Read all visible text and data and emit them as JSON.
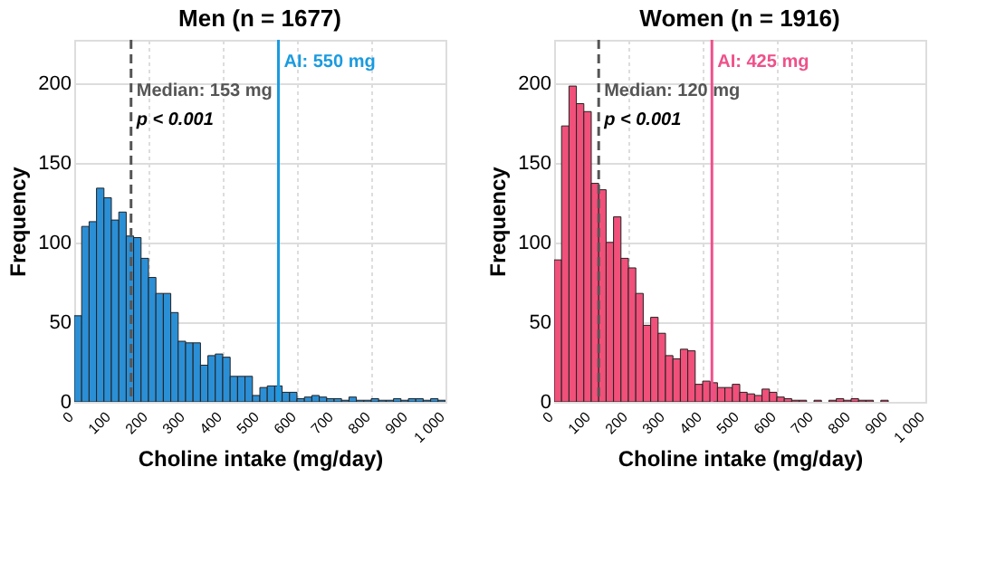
{
  "chart_data": [
    {
      "type": "histogram",
      "title": "Men (n = 1677)",
      "xlabel": "Choline intake (mg/day)",
      "ylabel": "Frequency",
      "bins": [
        0,
        20,
        40,
        60,
        80,
        100,
        120,
        140,
        160,
        180,
        200,
        220,
        240,
        260,
        280,
        300,
        320,
        340,
        360,
        380,
        400,
        420,
        440,
        460,
        480,
        500,
        520,
        540,
        560,
        580,
        600,
        620,
        640,
        660,
        680,
        700,
        720,
        740,
        760,
        780,
        800,
        820,
        840,
        860,
        880,
        900,
        920,
        940,
        960,
        980,
        1000
      ],
      "values": [
        54,
        110,
        113,
        134,
        128,
        114,
        119,
        104,
        103,
        90,
        78,
        68,
        68,
        56,
        38,
        37,
        37,
        23,
        29,
        30,
        28,
        16,
        16,
        16,
        4,
        9,
        10,
        10,
        6,
        6,
        2,
        3,
        4,
        3,
        2,
        2,
        1,
        3,
        1,
        1,
        2,
        1,
        1,
        2,
        1,
        2,
        2,
        1,
        2,
        1
      ],
      "color": "#2b8fd6",
      "xlim": [
        0,
        1000
      ],
      "xticks": [
        0,
        100,
        200,
        300,
        400,
        500,
        600,
        700,
        800,
        900,
        {
          "value": 1000,
          "label": "1 000"
        }
      ],
      "ylim": [
        0,
        227
      ],
      "yticks": [
        0,
        50,
        100,
        150,
        200
      ],
      "grid": true,
      "ref_lines": [
        {
          "axis": "x",
          "value": 153,
          "label": "Median: 153 mg",
          "color": "#555555",
          "line_style": "dashed"
        },
        {
          "axis": "x",
          "value": 550,
          "label": "AI: 550 mg",
          "color": "#1a9be0",
          "line_style": "solid"
        }
      ],
      "annotations": [
        "p < 0.001"
      ]
    },
    {
      "type": "histogram",
      "title": "Women (n = 1916)",
      "xlabel": "Choline intake (mg/day)",
      "ylabel": "Frequency",
      "bins": [
        0,
        20,
        40,
        60,
        80,
        100,
        120,
        140,
        160,
        180,
        200,
        220,
        240,
        260,
        280,
        300,
        320,
        340,
        360,
        380,
        400,
        420,
        440,
        460,
        480,
        500,
        520,
        540,
        560,
        580,
        600,
        620,
        640,
        660,
        680,
        700,
        720,
        740,
        760,
        780,
        800,
        820,
        840,
        860,
        880,
        900,
        920,
        940,
        960,
        980,
        1000
      ],
      "values": [
        89,
        173,
        198,
        187,
        182,
        137,
        133,
        100,
        116,
        90,
        84,
        68,
        48,
        53,
        43,
        29,
        27,
        33,
        32,
        11,
        13,
        12,
        9,
        9,
        11,
        6,
        5,
        4,
        8,
        6,
        3,
        2,
        1,
        1,
        0,
        1,
        0,
        1,
        2,
        1,
        2,
        1,
        1,
        0,
        1,
        0,
        0,
        0,
        0,
        0
      ],
      "color": "#f0507a",
      "xlim": [
        0,
        1000
      ],
      "xticks": [
        0,
        100,
        200,
        300,
        400,
        500,
        600,
        700,
        800,
        900,
        {
          "value": 1000,
          "label": "1 000"
        }
      ],
      "ylim": [
        0,
        227
      ],
      "yticks": [
        0,
        50,
        100,
        150,
        200
      ],
      "grid": true,
      "ref_lines": [
        {
          "axis": "x",
          "value": 120,
          "label": "Median: 120 mg",
          "color": "#555555",
          "line_style": "dashed"
        },
        {
          "axis": "x",
          "value": 425,
          "label": "AI: 425 mg",
          "color": "#f0508a",
          "line_style": "solid"
        }
      ],
      "annotations": [
        "p < 0.001"
      ]
    }
  ]
}
